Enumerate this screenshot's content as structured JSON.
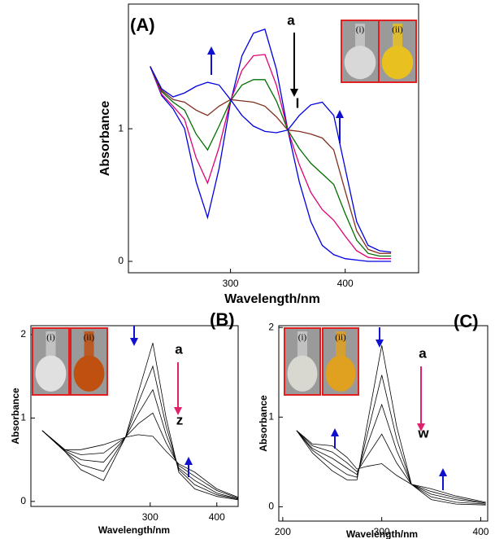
{
  "chart_data": [
    {
      "type": "line",
      "panel_label": "(A)",
      "x_label": "Wavelength/nm",
      "y_label": "Absorbance",
      "annotations": [
        "a",
        "l"
      ],
      "insets": [
        "(i)",
        "(ii)"
      ],
      "x": [
        230,
        240,
        250,
        260,
        270,
        280,
        290,
        300,
        310,
        320,
        330,
        340,
        350,
        360,
        370,
        380,
        390,
        400,
        410,
        420,
        430,
        440
      ],
      "series": [
        {
          "color": "#0000e0",
          "values": [
            1.47,
            1.25,
            1.15,
            1.0,
            0.6,
            0.33,
            0.7,
            1.2,
            1.55,
            1.72,
            1.75,
            1.45,
            0.99,
            0.6,
            0.3,
            0.12,
            0.05,
            0.02,
            0.01,
            0.0,
            0.0,
            0.0
          ]
        },
        {
          "color": "#e00070",
          "values": [
            1.47,
            1.26,
            1.17,
            1.07,
            0.78,
            0.59,
            0.86,
            1.21,
            1.44,
            1.55,
            1.56,
            1.33,
            0.99,
            0.73,
            0.52,
            0.39,
            0.31,
            0.19,
            0.08,
            0.03,
            0.02,
            0.02
          ]
        },
        {
          "color": "#007000",
          "values": [
            1.47,
            1.28,
            1.2,
            1.14,
            0.96,
            0.84,
            1.02,
            1.21,
            1.33,
            1.37,
            1.37,
            1.21,
            0.99,
            0.85,
            0.74,
            0.66,
            0.58,
            0.36,
            0.16,
            0.06,
            0.04,
            0.04
          ]
        },
        {
          "color": "#803020",
          "values": [
            1.47,
            1.29,
            1.22,
            1.2,
            1.14,
            1.1,
            1.17,
            1.22,
            1.21,
            1.2,
            1.17,
            1.09,
            0.99,
            0.98,
            0.96,
            0.93,
            0.84,
            0.53,
            0.23,
            0.09,
            0.06,
            0.06
          ]
        },
        {
          "color": "#0000e0",
          "values": [
            1.47,
            1.3,
            1.24,
            1.27,
            1.32,
            1.35,
            1.33,
            1.22,
            1.1,
            1.02,
            0.98,
            0.97,
            0.99,
            1.1,
            1.18,
            1.2,
            1.1,
            0.7,
            0.3,
            0.12,
            0.08,
            0.07
          ]
        }
      ],
      "xlim": [
        211,
        464
      ],
      "ylim": [
        -0.086,
        1.94
      ],
      "xticks": [
        300,
        400
      ],
      "yticks": [
        0,
        1
      ]
    },
    {
      "type": "line",
      "panel_label": "(B)",
      "x_label": "Wavelength/nm",
      "y_label": "Absorbance",
      "annotations": [
        "a",
        "z"
      ],
      "insets": [
        "(i)",
        "(ii)"
      ],
      "x": [
        138,
        172,
        196,
        230,
        263,
        282,
        304,
        324,
        343,
        367,
        400,
        432
      ],
      "series": [
        {
          "color": "#000000",
          "values": [
            0.85,
            0.6,
            0.38,
            0.25,
            0.77,
            1.3,
            1.9,
            1.0,
            0.35,
            0.15,
            0.06,
            0.02
          ]
        },
        {
          "color": "#000000",
          "values": [
            0.85,
            0.6,
            0.44,
            0.36,
            0.77,
            1.18,
            1.62,
            0.9,
            0.38,
            0.2,
            0.08,
            0.03
          ]
        },
        {
          "color": "#000000",
          "values": [
            0.85,
            0.61,
            0.5,
            0.47,
            0.77,
            1.05,
            1.34,
            0.8,
            0.4,
            0.25,
            0.1,
            0.03
          ]
        },
        {
          "color": "#000000",
          "values": [
            0.85,
            0.62,
            0.56,
            0.58,
            0.77,
            0.93,
            1.06,
            0.7,
            0.43,
            0.3,
            0.13,
            0.04
          ]
        },
        {
          "color": "#000000",
          "values": [
            0.85,
            0.62,
            0.62,
            0.68,
            0.77,
            0.8,
            0.78,
            0.6,
            0.45,
            0.35,
            0.15,
            0.05
          ]
        }
      ],
      "xlim": [
        121,
        432
      ],
      "ylim": [
        -0.06,
        2.107
      ],
      "xticks": [
        300,
        400
      ],
      "yticks": [
        0,
        1,
        2
      ]
    },
    {
      "type": "line",
      "panel_label": "(C)",
      "x_label": "Wavelength/nm",
      "y_label": "Absorbance",
      "annotations": [
        "a",
        "w"
      ],
      "insets": [
        "(i)",
        "(ii)"
      ],
      "x": [
        214,
        230,
        250,
        265,
        275,
        285,
        300,
        315,
        330,
        350,
        375,
        405
      ],
      "series": [
        {
          "color": "#000000",
          "values": [
            0.85,
            0.6,
            0.4,
            0.3,
            0.3,
            0.9,
            1.8,
            0.9,
            0.25,
            0.08,
            0.03,
            0.02
          ]
        },
        {
          "color": "#000000",
          "values": [
            0.85,
            0.63,
            0.47,
            0.36,
            0.33,
            0.79,
            1.47,
            0.76,
            0.25,
            0.11,
            0.05,
            0.03
          ]
        },
        {
          "color": "#000000",
          "values": [
            0.85,
            0.65,
            0.54,
            0.43,
            0.36,
            0.68,
            1.14,
            0.63,
            0.25,
            0.14,
            0.08,
            0.04
          ]
        },
        {
          "color": "#000000",
          "values": [
            0.85,
            0.68,
            0.61,
            0.49,
            0.39,
            0.56,
            0.81,
            0.49,
            0.25,
            0.17,
            0.1,
            0.04
          ]
        },
        {
          "color": "#000000",
          "values": [
            0.85,
            0.7,
            0.68,
            0.55,
            0.42,
            0.45,
            0.48,
            0.35,
            0.25,
            0.2,
            0.12,
            0.05
          ]
        }
      ],
      "xlim": [
        196,
        407
      ],
      "ylim": [
        -0.16,
        2.02
      ],
      "xticks": [
        200,
        300,
        400
      ],
      "yticks": [
        0,
        1,
        2
      ]
    }
  ]
}
